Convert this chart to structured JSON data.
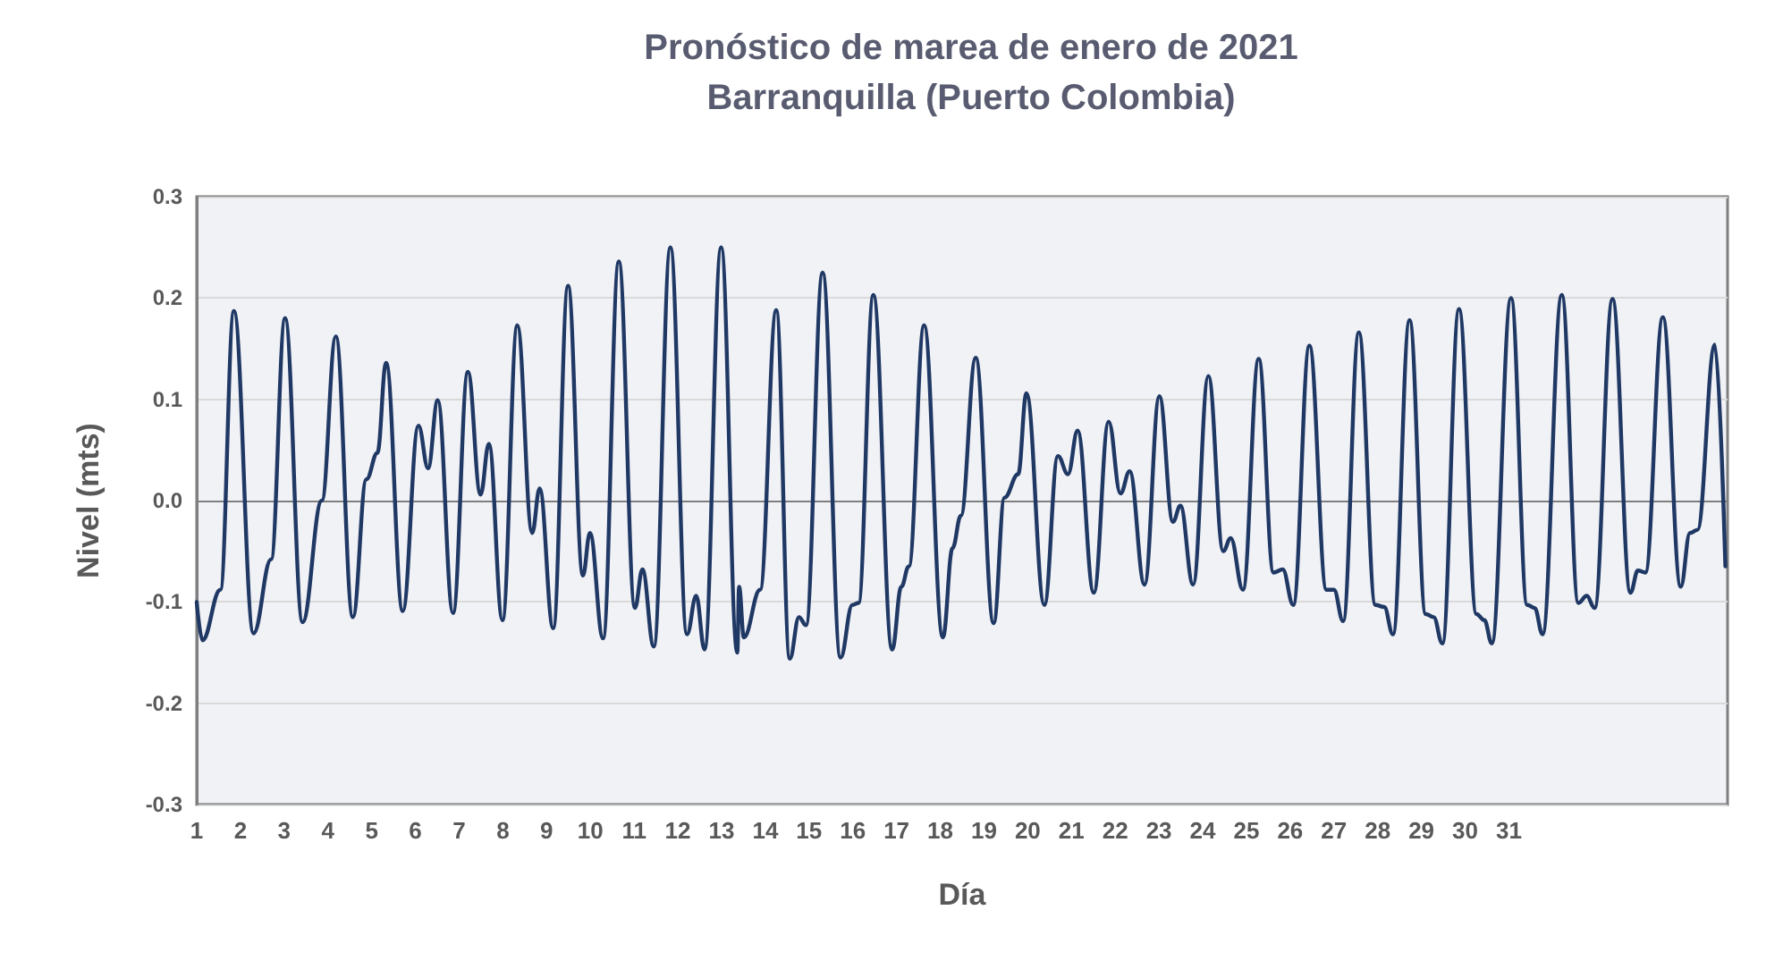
{
  "chart_data": {
    "type": "line",
    "title": "Pronóstico de marea de enero de 2021",
    "subtitle": "Barranquilla (Puerto Colombia)",
    "xlabel": "Día",
    "ylabel": "Nivel (mts)",
    "xlim": [
      1,
      36
    ],
    "xticks": [
      1,
      2,
      3,
      4,
      5,
      6,
      7,
      8,
      9,
      10,
      11,
      12,
      13,
      14,
      15,
      16,
      17,
      18,
      19,
      20,
      21,
      22,
      23,
      24,
      25,
      26,
      27,
      28,
      29,
      30,
      31
    ],
    "ylim": [
      -0.3,
      0.3
    ],
    "yticks": [
      -0.3,
      -0.2,
      -0.1,
      {
        "value": 0,
        "label": "0.0"
      },
      0.1,
      0.2,
      0.3
    ],
    "grid": "y",
    "marker": "none",
    "line_style": "solid",
    "series": [
      {
        "color": "#1f3864",
        "x": [
          1.0,
          1.13,
          1.54,
          1.85,
          2.3,
          2.7,
          3.02,
          3.42,
          3.86,
          4.18,
          4.57,
          4.88,
          5.13,
          5.33,
          5.71,
          6.07,
          6.29,
          6.51,
          6.86,
          7.2,
          7.49,
          7.68,
          7.99,
          8.33,
          8.67,
          8.84,
          9.15,
          9.49,
          9.83,
          9.99,
          10.29,
          10.65,
          11.02,
          11.19,
          11.45,
          11.83,
          12.21,
          12.42,
          12.61,
          12.99,
          13.36,
          13.4,
          13.51,
          13.88,
          14.25,
          14.56,
          14.77,
          14.93,
          15.31,
          15.72,
          15.99,
          16.13,
          16.47,
          16.9,
          17.11,
          17.28,
          17.63,
          18.06,
          18.28,
          18.47,
          18.81,
          19.22,
          19.47,
          19.78,
          19.97,
          20.38,
          20.69,
          20.92,
          21.14,
          21.51,
          21.85,
          22.12,
          22.33,
          22.67,
          23.01,
          23.32,
          23.49,
          23.78,
          24.13,
          24.47,
          24.64,
          24.92,
          25.28,
          25.62,
          25.83,
          26.07,
          26.44,
          26.83,
          27.0,
          27.21,
          27.57,
          27.95,
          28.15,
          28.35,
          28.73,
          29.1,
          29.28,
          29.48,
          29.86,
          30.26,
          30.44,
          30.61,
          31.05,
          31.42,
          31.59,
          31.77,
          32.21,
          32.59,
          32.78,
          32.96,
          33.37,
          33.78,
          33.95,
          34.12,
          34.52,
          34.93,
          35.14,
          35.31,
          35.71,
          35.95
        ],
        "values": [
          -0.1,
          -0.138,
          -0.088,
          0.187,
          -0.131,
          -0.058,
          0.18,
          -0.12,
          0.0,
          0.162,
          -0.115,
          0.021,
          0.047,
          0.136,
          -0.109,
          0.074,
          0.032,
          0.099,
          -0.111,
          0.127,
          0.006,
          0.056,
          -0.118,
          0.173,
          -0.032,
          0.012,
          -0.126,
          0.212,
          -0.074,
          -0.032,
          -0.136,
          0.236,
          -0.106,
          -0.068,
          -0.144,
          0.25,
          -0.132,
          -0.094,
          -0.147,
          0.25,
          -0.15,
          -0.085,
          -0.135,
          -0.088,
          0.188,
          -0.156,
          -0.115,
          -0.123,
          0.225,
          -0.155,
          -0.103,
          -0.101,
          0.203,
          -0.147,
          -0.085,
          -0.065,
          0.173,
          -0.135,
          -0.047,
          -0.015,
          0.141,
          -0.121,
          0.003,
          0.026,
          0.106,
          -0.103,
          0.044,
          0.026,
          0.069,
          -0.091,
          0.078,
          0.007,
          0.029,
          -0.083,
          0.103,
          -0.021,
          -0.005,
          -0.083,
          0.123,
          -0.05,
          -0.037,
          -0.088,
          0.14,
          -0.071,
          -0.068,
          -0.103,
          0.153,
          -0.088,
          -0.088,
          -0.119,
          0.166,
          -0.103,
          -0.105,
          -0.132,
          0.178,
          -0.112,
          -0.115,
          -0.141,
          0.189,
          -0.112,
          -0.118,
          -0.141,
          0.2,
          -0.103,
          -0.106,
          -0.132,
          0.203,
          -0.101,
          -0.094,
          -0.106,
          0.199,
          -0.091,
          -0.069,
          -0.071,
          0.181,
          -0.085,
          -0.032,
          -0.029,
          0.154,
          -0.065
        ]
      }
    ]
  }
}
